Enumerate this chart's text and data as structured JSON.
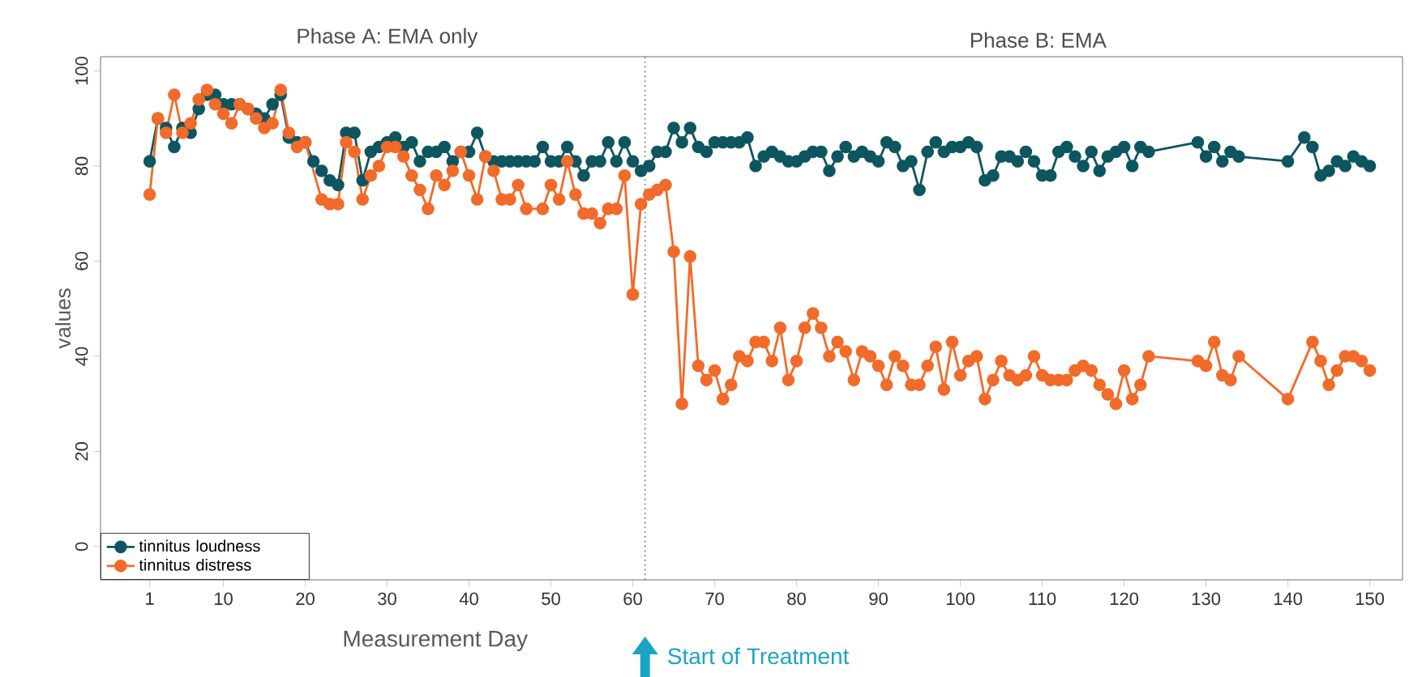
{
  "chart_data": {
    "type": "line",
    "xlabel": "Measurement Day",
    "ylabel": "values",
    "annotations": [
      "Phase A: EMA only",
      "Phase B: EMA",
      "Start of Treatment"
    ],
    "xlim": [
      -5,
      154
    ],
    "ylim": [
      -7,
      103
    ],
    "xticks": [
      1,
      10,
      20,
      30,
      40,
      50,
      60,
      70,
      80,
      90,
      100,
      110,
      120,
      130,
      140,
      150
    ],
    "yticks": [
      0,
      20,
      40,
      60,
      80,
      100
    ],
    "grid": false,
    "legend": "bottom left",
    "marker": "circle",
    "line_style": "solid",
    "ref_lines": [
      {
        "axis": "x",
        "value": 61.5,
        "color": "#808080",
        "line_style": "dotted"
      }
    ],
    "series": [
      {
        "name": "tinnitus loudness",
        "color": "#0d5660",
        "x": [
          1,
          2,
          3,
          4,
          5,
          6,
          7,
          8,
          9,
          10,
          11,
          12,
          13,
          14,
          15,
          16,
          17,
          18,
          19,
          20,
          21,
          22,
          23,
          24,
          25,
          26,
          27,
          28,
          29,
          30,
          31,
          32,
          33,
          34,
          35,
          36,
          37,
          38,
          39,
          40,
          41,
          42,
          43,
          44,
          45,
          46,
          47,
          48,
          49,
          50,
          51,
          52,
          53,
          54,
          55,
          56,
          57,
          58,
          59,
          60,
          61,
          62,
          63,
          64,
          65,
          66,
          67,
          68,
          69,
          70,
          71,
          72,
          73,
          74,
          75,
          76,
          77,
          78,
          79,
          80,
          81,
          82,
          83,
          84,
          85,
          86,
          87,
          88,
          89,
          90,
          91,
          92,
          93,
          94,
          95,
          96,
          97,
          98,
          99,
          100,
          101,
          102,
          103,
          104,
          105,
          106,
          107,
          108,
          109,
          110,
          111,
          112,
          113,
          114,
          115,
          116,
          117,
          118,
          119,
          120,
          121,
          122,
          123,
          129,
          130,
          131,
          132,
          133,
          134,
          140,
          142,
          143,
          144,
          145,
          146,
          147,
          148,
          149,
          150
        ],
        "values": [
          81,
          90,
          88,
          84,
          88,
          87,
          92,
          95,
          95,
          93,
          93,
          93,
          92,
          91,
          90,
          93,
          95,
          86,
          85,
          85,
          81,
          79,
          77,
          76,
          87,
          87,
          77,
          83,
          84,
          85,
          86,
          84,
          85,
          81,
          83,
          83,
          84,
          81,
          83,
          83,
          87,
          82,
          81,
          81,
          81,
          81,
          81,
          81,
          84,
          81,
          81,
          84,
          81,
          78,
          81,
          81,
          85,
          81,
          85,
          81,
          79,
          80,
          83,
          83,
          88,
          85,
          88,
          84,
          83,
          85,
          85,
          85,
          85,
          86,
          80,
          82,
          83,
          82,
          81,
          81,
          82,
          83,
          83,
          79,
          82,
          84,
          82,
          83,
          82,
          81,
          85,
          84,
          80,
          81,
          75,
          83,
          85,
          83,
          84,
          84,
          85,
          84,
          77,
          78,
          82,
          82,
          81,
          83,
          81,
          78,
          78,
          83,
          84,
          82,
          80,
          83,
          79,
          82,
          83,
          84,
          80,
          84,
          83,
          85,
          82,
          84,
          81,
          83,
          82,
          81,
          86,
          84,
          78,
          79,
          81,
          80,
          82,
          81,
          80
        ]
      },
      {
        "name": "tinnitus distress",
        "color": "#f26b2a",
        "x": [
          1,
          2,
          3,
          4,
          5,
          6,
          7,
          8,
          9,
          10,
          11,
          12,
          13,
          14,
          15,
          16,
          17,
          18,
          19,
          20,
          22,
          23,
          24,
          25,
          26,
          27,
          28,
          29,
          30,
          31,
          32,
          33,
          34,
          35,
          36,
          37,
          38,
          39,
          40,
          41,
          42,
          43,
          44,
          45,
          46,
          47,
          49,
          50,
          51,
          52,
          53,
          54,
          55,
          56,
          57,
          58,
          59,
          60,
          61,
          62,
          63,
          64,
          65,
          66,
          67,
          68,
          69,
          70,
          71,
          72,
          73,
          74,
          75,
          76,
          77,
          78,
          79,
          80,
          81,
          82,
          83,
          84,
          85,
          86,
          87,
          88,
          89,
          90,
          91,
          92,
          93,
          94,
          95,
          96,
          97,
          98,
          99,
          100,
          101,
          102,
          103,
          104,
          105,
          106,
          107,
          108,
          109,
          110,
          111,
          112,
          113,
          114,
          115,
          116,
          117,
          118,
          119,
          120,
          121,
          122,
          123,
          129,
          130,
          131,
          132,
          133,
          134,
          140,
          143,
          144,
          145,
          146,
          147,
          148,
          149,
          150
        ],
        "values": [
          74,
          90,
          87,
          95,
          87,
          89,
          94,
          96,
          93,
          91,
          89,
          93,
          92,
          90,
          88,
          89,
          96,
          87,
          84,
          85,
          73,
          72,
          72,
          85,
          83,
          73,
          78,
          80,
          84,
          84,
          82,
          78,
          75,
          71,
          78,
          76,
          79,
          83,
          78,
          73,
          82,
          79,
          73,
          73,
          76,
          71,
          71,
          76,
          73,
          81,
          74,
          70,
          70,
          68,
          71,
          71,
          78,
          53,
          72,
          74,
          75,
          76,
          62,
          30,
          61,
          38,
          35,
          37,
          31,
          34,
          40,
          39,
          43,
          43,
          39,
          46,
          35,
          39,
          46,
          49,
          46,
          40,
          43,
          41,
          35,
          41,
          40,
          38,
          34,
          40,
          38,
          34,
          34,
          38,
          42,
          33,
          43,
          36,
          39,
          40,
          31,
          35,
          39,
          36,
          35,
          36,
          40,
          36,
          35,
          35,
          35,
          37,
          38,
          37,
          34,
          32,
          30,
          37,
          31,
          34,
          40,
          39,
          38,
          43,
          36,
          35,
          40,
          31,
          43,
          39,
          34,
          37,
          40,
          40,
          39,
          37
        ]
      }
    ]
  }
}
